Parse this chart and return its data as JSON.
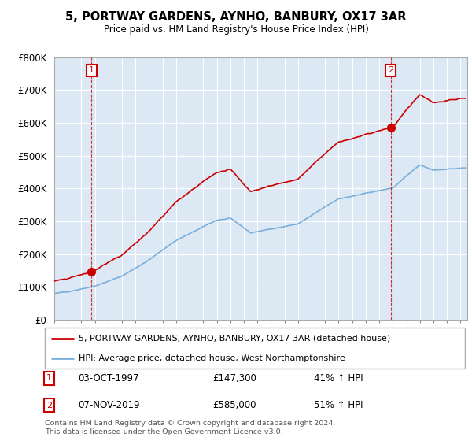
{
  "title": "5, PORTWAY GARDENS, AYNHO, BANBURY, OX17 3AR",
  "subtitle": "Price paid vs. HM Land Registry's House Price Index (HPI)",
  "ylim": [
    0,
    800000
  ],
  "yticks": [
    0,
    100000,
    200000,
    300000,
    400000,
    500000,
    600000,
    700000,
    800000
  ],
  "ytick_labels": [
    "£0",
    "£100K",
    "£200K",
    "£300K",
    "£400K",
    "£500K",
    "£600K",
    "£700K",
    "£800K"
  ],
  "xlim_start": 1995.0,
  "xlim_end": 2025.5,
  "transaction1": {
    "year": 1997.75,
    "price": 147300,
    "label": "1",
    "date": "03-OCT-1997",
    "price_str": "£147,300",
    "hpi_str": "41% ↑ HPI"
  },
  "transaction2": {
    "year": 2019.85,
    "price": 585000,
    "label": "2",
    "date": "07-NOV-2019",
    "price_str": "£585,000",
    "hpi_str": "51% ↑ HPI"
  },
  "legend_line1": "5, PORTWAY GARDENS, AYNHO, BANBURY, OX17 3AR (detached house)",
  "legend_line2": "HPI: Average price, detached house, West Northamptonshire",
  "footer": "Contains HM Land Registry data © Crown copyright and database right 2024.\nThis data is licensed under the Open Government Licence v3.0.",
  "red_color": "#cc0000",
  "blue_color": "#7aaedb",
  "chart_bg": "#dce9f5",
  "grid_color": "#ffffff",
  "border_color": "#aaaaaa"
}
